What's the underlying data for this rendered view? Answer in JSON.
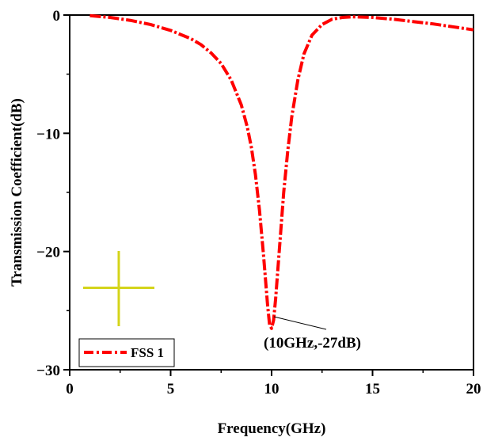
{
  "chart_data": {
    "type": "line",
    "title": "",
    "xlabel": "Frequency(GHz)",
    "ylabel": "Transmission Coefficient(dB)",
    "xlim": [
      0,
      20
    ],
    "ylim": [
      -30,
      0
    ],
    "x_ticks": [
      0,
      5,
      10,
      15,
      20
    ],
    "y_ticks": [
      0,
      -10,
      -20,
      -30
    ],
    "grid": false,
    "legend_position": "bottom-left",
    "series": [
      {
        "name": "FSS 1",
        "color": "#ff0000",
        "style": "dash-dot",
        "x": [
          1,
          2,
          3,
          4,
          5,
          6,
          6.5,
          7,
          7.5,
          8,
          8.5,
          8.8,
          9,
          9.2,
          9.4,
          9.6,
          9.8,
          9.9,
          10,
          10.1,
          10.2,
          10.4,
          10.6,
          10.8,
          11,
          11.3,
          11.6,
          12,
          12.5,
          13,
          13.5,
          14,
          15,
          16,
          17,
          18,
          19,
          20
        ],
        "y": [
          -0.05,
          -0.2,
          -0.45,
          -0.8,
          -1.3,
          -2.0,
          -2.5,
          -3.2,
          -4.1,
          -5.5,
          -7.6,
          -9.5,
          -11.2,
          -13.5,
          -16.5,
          -20.3,
          -24.5,
          -26.2,
          -26.5,
          -25.8,
          -24.0,
          -19.5,
          -15.0,
          -11.5,
          -8.6,
          -5.5,
          -3.3,
          -1.7,
          -0.8,
          -0.35,
          -0.2,
          -0.15,
          -0.2,
          -0.35,
          -0.55,
          -0.75,
          -1.0,
          -1.25
        ]
      }
    ],
    "annotations": [
      {
        "text": "(10GHz,-27dB)",
        "x": 10,
        "y": -26.5
      }
    ]
  },
  "legend": {
    "label": "FSS 1"
  },
  "inset_icon": "cross-shaped-fss-unit-icon"
}
